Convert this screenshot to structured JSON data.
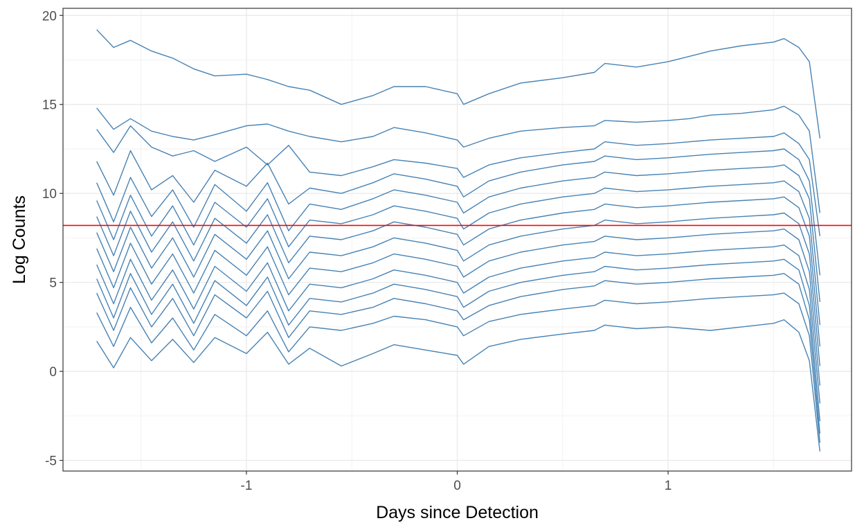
{
  "chart_data": {
    "type": "line",
    "title": "",
    "xlabel": "Days since Detection",
    "ylabel": "Log Counts",
    "xlim": [
      -1.87,
      1.87
    ],
    "ylim": [
      -5.6,
      20.4
    ],
    "x_ticks": [
      -1,
      0,
      1
    ],
    "y_ticks": [
      -5,
      0,
      5,
      10,
      15,
      20
    ],
    "x_tick_labels": [
      "-1",
      "0",
      "1"
    ],
    "y_tick_labels": [
      "-5",
      "0",
      "5",
      "10",
      "15",
      "20"
    ],
    "grid": true,
    "legend": "none",
    "series_color": "#4682b4",
    "reference_line": {
      "y": 8.2,
      "color": "#ff0000"
    },
    "series": [
      {
        "x": [
          -1.71,
          -1.63,
          -1.55,
          -1.45,
          -1.35,
          -1.25,
          -1.15,
          -1.0,
          -0.9,
          -0.8,
          -0.7,
          -0.55,
          -0.4,
          -0.3,
          -0.15,
          0.0,
          0.03,
          0.15,
          0.3,
          0.5,
          0.65,
          0.7,
          0.85,
          1.0,
          1.1,
          1.2,
          1.35,
          1.5,
          1.55,
          1.62,
          1.67,
          1.72
        ],
        "y": [
          19.2,
          18.2,
          18.6,
          18.0,
          17.6,
          17.0,
          16.6,
          16.7,
          16.4,
          16.0,
          15.8,
          15.0,
          15.5,
          16.0,
          16.0,
          15.6,
          15.0,
          15.6,
          16.2,
          16.5,
          16.8,
          17.3,
          17.1,
          17.4,
          17.7,
          18.0,
          18.3,
          18.5,
          18.7,
          18.2,
          17.4,
          13.1
        ]
      },
      {
        "x": [
          -1.71,
          -1.63,
          -1.55,
          -1.45,
          -1.35,
          -1.25,
          -1.15,
          -1.0,
          -0.9,
          -0.8,
          -0.7,
          -0.55,
          -0.4,
          -0.3,
          -0.15,
          0.0,
          0.03,
          0.15,
          0.3,
          0.5,
          0.65,
          0.7,
          0.85,
          1.0,
          1.1,
          1.2,
          1.35,
          1.5,
          1.55,
          1.62,
          1.67,
          1.72
        ],
        "y": [
          14.8,
          13.6,
          14.2,
          13.5,
          13.2,
          13.0,
          13.3,
          13.8,
          13.9,
          13.5,
          13.2,
          12.9,
          13.2,
          13.7,
          13.4,
          13.0,
          12.6,
          13.1,
          13.5,
          13.7,
          13.8,
          14.1,
          14.0,
          14.1,
          14.2,
          14.4,
          14.5,
          14.7,
          14.9,
          14.4,
          13.5,
          8.9
        ]
      },
      {
        "x": [
          -1.71,
          -1.63,
          -1.55,
          -1.45,
          -1.35,
          -1.25,
          -1.15,
          -1.0,
          -0.9,
          -0.8,
          -0.7,
          -0.55,
          -0.4,
          -0.3,
          -0.15,
          0.0,
          0.03,
          0.15,
          0.3,
          0.5,
          0.65,
          0.7,
          0.85,
          1.0,
          1.1,
          1.2,
          1.35,
          1.5,
          1.55,
          1.62,
          1.67,
          1.72
        ],
        "y": [
          13.6,
          12.3,
          13.8,
          12.6,
          12.1,
          12.4,
          11.8,
          12.6,
          11.6,
          12.7,
          11.2,
          11.0,
          11.5,
          11.9,
          11.7,
          11.4,
          10.9,
          11.6,
          12.0,
          12.3,
          12.5,
          12.9,
          12.7,
          12.8,
          12.9,
          13.0,
          13.1,
          13.2,
          13.4,
          12.8,
          11.9,
          7.6
        ]
      },
      {
        "x": [
          -1.71,
          -1.63,
          -1.55,
          -1.45,
          -1.35,
          -1.25,
          -1.15,
          -1.0,
          -0.9,
          -0.8,
          -0.7,
          -0.55,
          -0.4,
          -0.3,
          -0.15,
          0.0,
          0.03,
          0.15,
          0.3,
          0.5,
          0.65,
          0.7,
          0.85,
          1.0,
          1.1,
          1.2,
          1.35,
          1.5,
          1.55,
          1.62,
          1.67,
          1.72
        ],
        "y": [
          11.8,
          9.9,
          12.4,
          10.2,
          11.0,
          9.5,
          11.3,
          10.4,
          11.7,
          9.4,
          10.3,
          10.0,
          10.6,
          11.1,
          10.8,
          10.4,
          9.8,
          10.7,
          11.2,
          11.6,
          11.8,
          12.1,
          11.9,
          12.0,
          12.1,
          12.2,
          12.3,
          12.4,
          12.5,
          11.9,
          10.7,
          5.4
        ]
      },
      {
        "x": [
          -1.71,
          -1.63,
          -1.55,
          -1.45,
          -1.35,
          -1.25,
          -1.15,
          -1.0,
          -0.9,
          -0.8,
          -0.7,
          -0.55,
          -0.4,
          -0.3,
          -0.15,
          0.0,
          0.03,
          0.15,
          0.3,
          0.5,
          0.65,
          0.7,
          0.85,
          1.0,
          1.1,
          1.2,
          1.35,
          1.5,
          1.55,
          1.62,
          1.67,
          1.72
        ],
        "y": [
          10.6,
          8.4,
          10.9,
          8.7,
          10.2,
          8.1,
          10.5,
          9.0,
          10.6,
          7.9,
          9.4,
          9.1,
          9.7,
          10.2,
          9.9,
          9.5,
          8.9,
          9.8,
          10.3,
          10.7,
          10.9,
          11.2,
          11.0,
          11.1,
          11.2,
          11.3,
          11.4,
          11.5,
          11.6,
          11.0,
          9.7,
          3.9
        ]
      },
      {
        "x": [
          -1.71,
          -1.63,
          -1.55,
          -1.45,
          -1.35,
          -1.25,
          -1.15,
          -1.0,
          -0.9,
          -0.8,
          -0.7,
          -0.55,
          -0.4,
          -0.3,
          -0.15,
          0.0,
          0.03,
          0.15,
          0.3,
          0.5,
          0.65,
          0.7,
          0.85,
          1.0,
          1.1,
          1.2,
          1.35,
          1.5,
          1.55,
          1.62,
          1.67,
          1.72
        ],
        "y": [
          9.6,
          7.4,
          9.9,
          7.6,
          9.3,
          7.1,
          9.5,
          8.1,
          9.7,
          7.0,
          8.5,
          8.3,
          8.8,
          9.3,
          9.0,
          8.6,
          8.0,
          8.9,
          9.4,
          9.8,
          10.0,
          10.3,
          10.1,
          10.2,
          10.3,
          10.4,
          10.5,
          10.6,
          10.7,
          10.1,
          8.6,
          2.6
        ]
      },
      {
        "x": [
          -1.71,
          -1.63,
          -1.55,
          -1.45,
          -1.35,
          -1.25,
          -1.15,
          -1.0,
          -0.9,
          -0.8,
          -0.7,
          -0.55,
          -0.4,
          -0.3,
          -0.15,
          0.0,
          0.03,
          0.15,
          0.3,
          0.5,
          0.65,
          0.7,
          0.85,
          1.0,
          1.1,
          1.2,
          1.35,
          1.5,
          1.55,
          1.62,
          1.67,
          1.72
        ],
        "y": [
          8.7,
          6.5,
          9.0,
          6.7,
          8.4,
          6.2,
          8.6,
          7.2,
          8.8,
          6.1,
          7.6,
          7.4,
          7.9,
          8.4,
          8.1,
          7.7,
          7.1,
          8.0,
          8.5,
          8.9,
          9.1,
          9.4,
          9.2,
          9.3,
          9.4,
          9.5,
          9.6,
          9.7,
          9.8,
          9.2,
          7.6,
          1.4
        ]
      },
      {
        "x": [
          -1.71,
          -1.63,
          -1.55,
          -1.45,
          -1.35,
          -1.25,
          -1.15,
          -1.0,
          -0.9,
          -0.8,
          -0.7,
          -0.55,
          -0.4,
          -0.3,
          -0.15,
          0.0,
          0.03,
          0.15,
          0.3,
          0.5,
          0.65,
          0.7,
          0.85,
          1.0,
          1.1,
          1.2,
          1.35,
          1.5,
          1.55,
          1.62,
          1.67,
          1.72
        ],
        "y": [
          7.8,
          5.6,
          8.1,
          5.8,
          7.5,
          5.3,
          7.7,
          6.3,
          7.9,
          5.2,
          6.7,
          6.5,
          7.0,
          7.5,
          7.2,
          6.8,
          6.2,
          7.1,
          7.6,
          8.0,
          8.2,
          8.5,
          8.3,
          8.4,
          8.5,
          8.6,
          8.7,
          8.8,
          8.9,
          8.3,
          6.6,
          0.3
        ]
      },
      {
        "x": [
          -1.71,
          -1.63,
          -1.55,
          -1.45,
          -1.35,
          -1.25,
          -1.15,
          -1.0,
          -0.9,
          -0.8,
          -0.7,
          -0.55,
          -0.4,
          -0.3,
          -0.15,
          0.0,
          0.03,
          0.15,
          0.3,
          0.5,
          0.65,
          0.7,
          0.85,
          1.0,
          1.1,
          1.2,
          1.35,
          1.5,
          1.55,
          1.62,
          1.67,
          1.72
        ],
        "y": [
          6.9,
          4.7,
          7.2,
          4.9,
          6.6,
          4.4,
          6.8,
          5.4,
          7.0,
          4.3,
          5.8,
          5.6,
          6.1,
          6.6,
          6.3,
          5.9,
          5.3,
          6.2,
          6.7,
          7.1,
          7.3,
          7.6,
          7.4,
          7.5,
          7.6,
          7.7,
          7.8,
          7.9,
          8.0,
          7.4,
          5.6,
          -0.8
        ]
      },
      {
        "x": [
          -1.71,
          -1.63,
          -1.55,
          -1.45,
          -1.35,
          -1.25,
          -1.15,
          -1.0,
          -0.9,
          -0.8,
          -0.7,
          -0.55,
          -0.4,
          -0.3,
          -0.15,
          0.0,
          0.03,
          0.15,
          0.3,
          0.5,
          0.65,
          0.7,
          0.85,
          1.0,
          1.1,
          1.2,
          1.35,
          1.5,
          1.55,
          1.62,
          1.67,
          1.72
        ],
        "y": [
          6.0,
          3.8,
          6.3,
          4.0,
          5.7,
          3.5,
          5.9,
          4.5,
          6.1,
          3.4,
          4.9,
          4.7,
          5.2,
          5.7,
          5.4,
          5.0,
          4.4,
          5.3,
          5.8,
          6.2,
          6.4,
          6.7,
          6.5,
          6.6,
          6.7,
          6.8,
          6.9,
          7.0,
          7.1,
          6.5,
          4.6,
          -1.8
        ]
      },
      {
        "x": [
          -1.71,
          -1.63,
          -1.55,
          -1.45,
          -1.35,
          -1.25,
          -1.15,
          -1.0,
          -0.9,
          -0.8,
          -0.7,
          -0.55,
          -0.4,
          -0.3,
          -0.15,
          0.0,
          0.03,
          0.15,
          0.3,
          0.5,
          0.65,
          0.7,
          0.85,
          1.0,
          1.1,
          1.2,
          1.35,
          1.5,
          1.55,
          1.62,
          1.67,
          1.72
        ],
        "y": [
          5.2,
          3.0,
          5.5,
          3.2,
          4.9,
          2.7,
          5.1,
          3.7,
          5.3,
          2.6,
          4.1,
          3.9,
          4.4,
          4.9,
          4.6,
          4.2,
          3.6,
          4.5,
          5.0,
          5.4,
          5.6,
          5.9,
          5.7,
          5.8,
          5.9,
          6.0,
          6.1,
          6.2,
          6.3,
          5.7,
          3.7,
          -2.8
        ]
      },
      {
        "x": [
          -1.71,
          -1.63,
          -1.55,
          -1.45,
          -1.35,
          -1.25,
          -1.15,
          -1.0,
          -0.9,
          -0.8,
          -0.7,
          -0.55,
          -0.4,
          -0.3,
          -0.15,
          0.0,
          0.03,
          0.15,
          0.3,
          0.5,
          0.65,
          0.7,
          0.85,
          1.0,
          1.1,
          1.2,
          1.35,
          1.5,
          1.55,
          1.62,
          1.67,
          1.72
        ],
        "y": [
          4.4,
          2.3,
          4.7,
          2.5,
          4.1,
          2.0,
          4.3,
          3.0,
          4.5,
          1.9,
          3.4,
          3.2,
          3.6,
          4.1,
          3.8,
          3.4,
          2.9,
          3.7,
          4.2,
          4.6,
          4.8,
          5.1,
          4.9,
          5.0,
          5.1,
          5.2,
          5.3,
          5.4,
          5.5,
          4.9,
          2.9,
          -3.5
        ]
      },
      {
        "x": [
          -1.71,
          -1.63,
          -1.55,
          -1.45,
          -1.35,
          -1.25,
          -1.15,
          -1.0,
          -0.9,
          -0.8,
          -0.7,
          -0.55,
          -0.4,
          -0.3,
          -0.15,
          0.0,
          0.03,
          0.15,
          0.3,
          0.5,
          0.65,
          0.7,
          0.85,
          1.0,
          1.1,
          1.2,
          1.35,
          1.5,
          1.55,
          1.62,
          1.67,
          1.72
        ],
        "y": [
          3.3,
          1.4,
          3.6,
          1.6,
          3.0,
          1.2,
          3.2,
          2.0,
          3.4,
          1.1,
          2.5,
          2.3,
          2.7,
          3.1,
          2.9,
          2.5,
          2.0,
          2.8,
          3.2,
          3.5,
          3.7,
          4.0,
          3.8,
          3.9,
          4.0,
          4.1,
          4.2,
          4.3,
          4.4,
          3.8,
          2.0,
          -4.0
        ]
      },
      {
        "x": [
          -1.71,
          -1.63,
          -1.55,
          -1.45,
          -1.35,
          -1.25,
          -1.15,
          -1.0,
          -0.9,
          -0.8,
          -0.7,
          -0.55,
          -0.4,
          -0.3,
          -0.15,
          0.0,
          0.03,
          0.15,
          0.3,
          0.5,
          0.65,
          0.7,
          0.85,
          1.0,
          1.1,
          1.2,
          1.35,
          1.5,
          1.55,
          1.62,
          1.67,
          1.72
        ],
        "y": [
          1.7,
          0.2,
          1.9,
          0.6,
          1.8,
          0.5,
          1.9,
          1.0,
          2.2,
          0.4,
          1.3,
          0.3,
          1.0,
          1.5,
          1.2,
          0.9,
          0.4,
          1.4,
          1.8,
          2.1,
          2.3,
          2.6,
          2.4,
          2.5,
          2.4,
          2.3,
          2.5,
          2.7,
          2.9,
          2.2,
          0.6,
          -4.5
        ]
      }
    ]
  }
}
